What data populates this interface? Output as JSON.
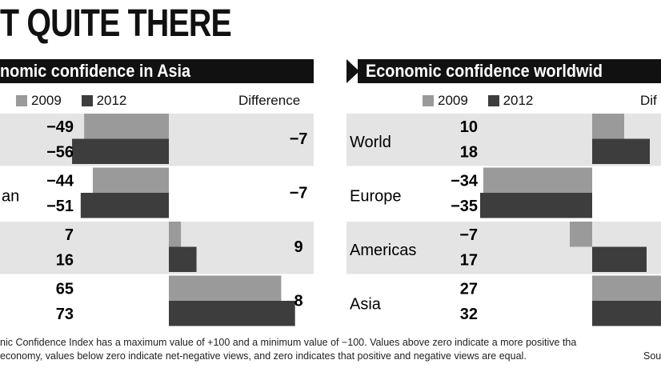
{
  "page": {
    "title": "T QUITE THERE",
    "footnote_line1": "nic Confidence Index has a maximum value of +100 and a minimum value of −100. Values above zero indicate a more positive tha",
    "footnote_line2": "economy, values below zero indicate net-negative views, and zero indicates that positive and negative views are equal.",
    "footnote_source": "Sou"
  },
  "colors": {
    "y2009": "#9a9a9a",
    "y2012": "#3d3d3d",
    "row_shade": "#e4e4e4",
    "banner": "#111111"
  },
  "legend": {
    "y2009": "2009",
    "y2012": "2012",
    "difference": "Difference",
    "difference_right": "Dif"
  },
  "chart_data": [
    {
      "type": "bar",
      "orientation": "horizontal",
      "title": "nomic confidence in Asia",
      "series": [
        {
          "name": "2009",
          "values": [
            -49,
            -44,
            7,
            65
          ]
        },
        {
          "name": "2012",
          "values": [
            -56,
            -51,
            16,
            73
          ]
        }
      ],
      "row_labels": [
        "",
        "an",
        "",
        ""
      ],
      "difference": [
        "-7",
        "-7",
        "9",
        "8"
      ],
      "xlim": [
        -80,
        80
      ]
    },
    {
      "type": "bar",
      "orientation": "horizontal",
      "title": "Economic confidence worldwid",
      "categories": [
        "World",
        "Europe",
        "Americas",
        "Asia"
      ],
      "series": [
        {
          "name": "2009",
          "values": [
            10,
            -34,
            -7,
            27
          ]
        },
        {
          "name": "2012",
          "values": [
            18,
            -35,
            17,
            32
          ]
        }
      ],
      "xlim": [
        -40,
        40
      ]
    }
  ]
}
